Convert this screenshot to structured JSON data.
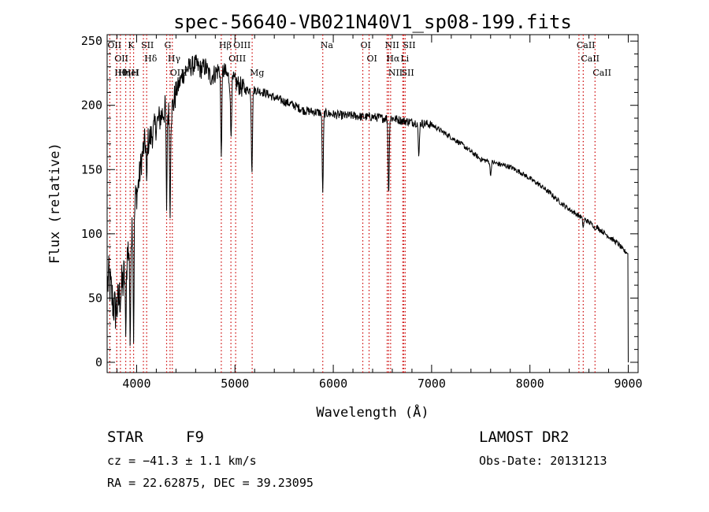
{
  "chart_data": {
    "type": "line",
    "title": "spec-56640-VB021N40V1_sp08-199.fits",
    "xlabel": "Wavelength (Å)",
    "ylabel": "Flux (relative)",
    "xlim": [
      3700,
      9100
    ],
    "ylim": [
      -8,
      255
    ],
    "x_ticks": [
      4000,
      5000,
      6000,
      7000,
      8000,
      9000
    ],
    "x_tick_labels": [
      "4000",
      "5000",
      "6000",
      "7000",
      "8000",
      "9000"
    ],
    "y_ticks": [
      0,
      50,
      100,
      150,
      200,
      250
    ],
    "y_tick_labels": [
      "0",
      "50",
      "100",
      "150",
      "200",
      "250"
    ],
    "grid": false,
    "line_color": "#000000",
    "marker_color": "#cc0000",
    "continuum": {
      "x": [
        3700,
        3720,
        3750,
        3780,
        3810,
        3840,
        3870,
        3900,
        3930,
        3960,
        3990,
        4020,
        4050,
        4080,
        4120,
        4160,
        4200,
        4250,
        4300,
        4340,
        4400,
        4450,
        4500,
        4550,
        4600,
        4650,
        4700,
        4750,
        4800,
        4860,
        4900,
        4950,
        5000,
        5050,
        5100,
        5150,
        5200,
        5300,
        5400,
        5500,
        5600,
        5700,
        5800,
        5900,
        6000,
        6100,
        6200,
        6300,
        6400,
        6500,
        6563,
        6600,
        6700,
        6800,
        6900,
        7000,
        7100,
        7200,
        7300,
        7400,
        7500,
        7600,
        7700,
        7800,
        7900,
        8000,
        8100,
        8200,
        8300,
        8400,
        8500,
        8600,
        8700,
        8800,
        8900,
        8950,
        9000
      ],
      "y": [
        60,
        65,
        50,
        40,
        45,
        55,
        65,
        80,
        95,
        110,
        125,
        140,
        158,
        170,
        172,
        178,
        185,
        192,
        198,
        190,
        210,
        220,
        228,
        230,
        232,
        228,
        230,
        222,
        225,
        230,
        225,
        220,
        218,
        215,
        212,
        212,
        212,
        210,
        206,
        203,
        200,
        196,
        195,
        194,
        193,
        192,
        192,
        191,
        191,
        190,
        190,
        190,
        188,
        187,
        186,
        185,
        180,
        175,
        170,
        164,
        158,
        156,
        154,
        152,
        148,
        143,
        138,
        132,
        125,
        119,
        114,
        109,
        104,
        98,
        92,
        87,
        85
      ],
      "dips": [
        {
          "x": 3889,
          "y": 20
        },
        {
          "x": 3934,
          "y": 10
        },
        {
          "x": 3969,
          "y": 15
        },
        {
          "x": 4102,
          "y": 140
        },
        {
          "x": 4305,
          "y": 118
        },
        {
          "x": 4340,
          "y": 110
        },
        {
          "x": 4861,
          "y": 160
        },
        {
          "x": 4960,
          "y": 175
        },
        {
          "x": 5172,
          "y": 147
        },
        {
          "x": 5893,
          "y": 132
        },
        {
          "x": 6563,
          "y": 130
        },
        {
          "x": 6870,
          "y": 160
        },
        {
          "x": 7600,
          "y": 145
        },
        {
          "x": 8542,
          "y": 105
        },
        {
          "x": 8662,
          "y": 103
        }
      ],
      "drop_x": 9000,
      "drop_y": 0
    },
    "lines": [
      {
        "x": 3727,
        "label": "OII"
      },
      {
        "x": 3798,
        "label": "OII"
      },
      {
        "x": 3798,
        "label": "Hθ"
      },
      {
        "x": 3835,
        "label": "Hη"
      },
      {
        "x": 3889,
        "label": "HeI"
      },
      {
        "x": 3934,
        "label": "K"
      },
      {
        "x": 3969,
        "label": "H"
      },
      {
        "x": 4069,
        "label": "SII"
      },
      {
        "x": 4102,
        "label": "Hδ"
      },
      {
        "x": 4305,
        "label": "G"
      },
      {
        "x": 4340,
        "label": "Hγ"
      },
      {
        "x": 4363,
        "label": "OIII"
      },
      {
        "x": 4861,
        "label": "Hβ"
      },
      {
        "x": 4959,
        "label": "OIII"
      },
      {
        "x": 5007,
        "label": "OIII"
      },
      {
        "x": 5175,
        "label": "Mg"
      },
      {
        "x": 5893,
        "label": "Na"
      },
      {
        "x": 6300,
        "label": "OI"
      },
      {
        "x": 6364,
        "label": "OI"
      },
      {
        "x": 6548,
        "label": "NII"
      },
      {
        "x": 6563,
        "label": "Hα"
      },
      {
        "x": 6583,
        "label": "NII"
      },
      {
        "x": 6707,
        "label": "Li"
      },
      {
        "x": 6716,
        "label": "SII"
      },
      {
        "x": 6731,
        "label": "SII"
      },
      {
        "x": 8498,
        "label": "CaII"
      },
      {
        "x": 8542,
        "label": "CaII"
      },
      {
        "x": 8662,
        "label": "CaII"
      }
    ]
  },
  "info": {
    "class_label": "STAR",
    "subclass": "F9",
    "survey": "LAMOST DR2",
    "redshift": "cz = −41.3 ± 1.1 km/s",
    "obs_date": "Obs-Date: 20131213",
    "coords": "RA =  22.62875, DEC =  39.23095"
  }
}
